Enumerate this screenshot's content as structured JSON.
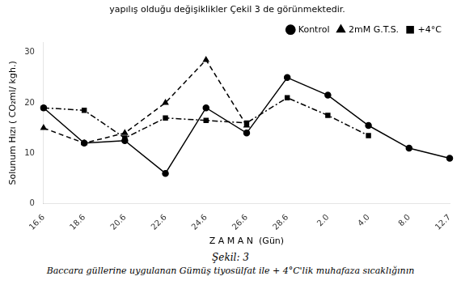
{
  "chart_data": {
    "type": "line",
    "header": "yapılış olduğu değişiklikler Çekil 3 de görünmektedir.",
    "title": "Şekil: 3",
    "subtitle": "Baccara güllerine uygulanan Gümüş tiyosülfat ile + 4°C'lik muhafaza sıcaklığının",
    "xlabel": "Z A M A N  (Gün)",
    "ylabel": "Solunum Hızı ( CO₂ml/ kgh.)",
    "categories": [
      "16.6",
      "18.6",
      "20.6",
      "22.6",
      "24.6",
      "26.6",
      "28.6",
      "2.0",
      "4.0",
      "8.0",
      "12.7"
    ],
    "series": [
      {
        "name": "Kontrol",
        "color": "black",
        "marker": "circle",
        "line_style": "solid",
        "values": [
          19,
          12,
          12.5,
          6,
          19,
          14,
          25,
          21.5,
          15.5,
          11,
          9
        ]
      },
      {
        "name": "2mM G.T.S.",
        "color": "black",
        "marker": "triangle",
        "line_style": "dashed",
        "values": [
          15,
          12,
          14,
          20,
          28.5,
          15.5,
          null,
          null,
          null,
          null,
          null
        ]
      },
      {
        "name": "+4°C",
        "color": "black",
        "marker": "square",
        "line_style": "dashdot",
        "values": [
          19,
          18.5,
          13,
          17,
          16.5,
          16,
          21,
          17.5,
          13.5,
          null,
          null
        ]
      }
    ],
    "ylim": [
      0,
      32
    ],
    "yticks": [
      0,
      10,
      20,
      30
    ],
    "grid": false,
    "legend": "upper right"
  }
}
